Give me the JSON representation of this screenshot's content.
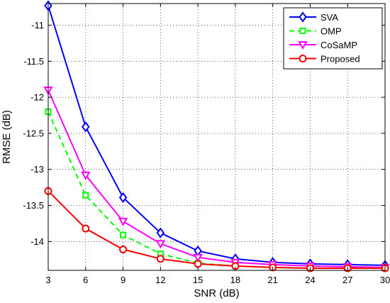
{
  "chart_data": {
    "type": "line",
    "xlabel": "SNR (dB)",
    "ylabel": "RMSE (dB)",
    "x": [
      3,
      6,
      9,
      12,
      15,
      18,
      21,
      24,
      27,
      30
    ],
    "xlim": [
      3,
      30
    ],
    "ylim": [
      -14.4,
      -10.7
    ],
    "xticks": [
      "3",
      "6",
      "9",
      "12",
      "15",
      "18",
      "21",
      "24",
      "27",
      "30"
    ],
    "yticks": [
      "-11",
      "-11.5",
      "-12",
      "-12.5",
      "-13",
      "-13.5",
      "-14"
    ],
    "grid": true,
    "legend_position": "top-right",
    "series": [
      {
        "name": "SVA",
        "color": "#0000ff",
        "marker": "diamond",
        "dash": "solid",
        "values": [
          -10.73,
          -12.41,
          -13.39,
          -13.88,
          -14.13,
          -14.24,
          -14.29,
          -14.31,
          -14.32,
          -14.33
        ]
      },
      {
        "name": "OMP",
        "color": "#00ff00",
        "marker": "square",
        "dash": "dashed",
        "values": [
          -12.2,
          -13.36,
          -13.91,
          -14.17,
          -14.3,
          -14.34,
          -14.36,
          -14.37,
          -14.37,
          -14.37
        ]
      },
      {
        "name": "CoSaMP",
        "color": "#ff00ff",
        "marker": "triangle-down",
        "dash": "solid",
        "values": [
          -11.9,
          -13.08,
          -13.72,
          -14.03,
          -14.22,
          -14.29,
          -14.32,
          -14.34,
          -14.35,
          -14.36
        ]
      },
      {
        "name": "Proposed",
        "color": "#ff0000",
        "marker": "circle",
        "dash": "solid",
        "values": [
          -13.3,
          -13.82,
          -14.11,
          -14.24,
          -14.31,
          -14.34,
          -14.36,
          -14.37,
          -14.37,
          -14.37
        ]
      }
    ]
  }
}
